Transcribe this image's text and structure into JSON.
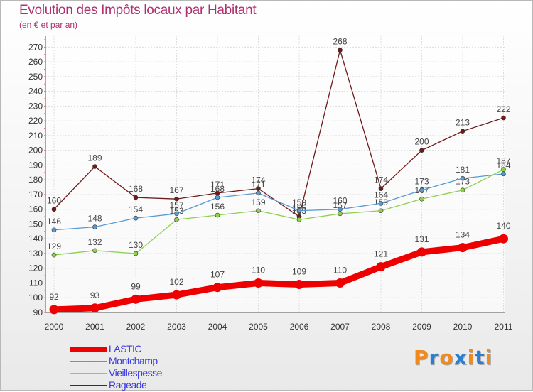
{
  "chart_data": {
    "type": "line",
    "title": "Evolution des Impôts locaux par Habitant",
    "subtitle": "(en € et par an)",
    "xlabel": "",
    "ylabel": "",
    "x": [
      "2000",
      "2001",
      "2002",
      "2003",
      "2004",
      "2005",
      "2006",
      "2007",
      "2008",
      "2009",
      "2010",
      "2011"
    ],
    "ylim": [
      90,
      275
    ],
    "yticks": [
      90,
      100,
      110,
      120,
      130,
      140,
      150,
      160,
      170,
      180,
      190,
      200,
      210,
      220,
      230,
      240,
      250,
      260,
      270
    ],
    "grid": true,
    "legend_position": "bottom-left",
    "series": [
      {
        "name": "LASTIC",
        "color": "#ee0000",
        "values": [
          92,
          93,
          99,
          102,
          107,
          110,
          109,
          110,
          121,
          131,
          134,
          140
        ]
      },
      {
        "name": "Montchamp",
        "color": "#5a9ad0",
        "values": [
          146,
          148,
          154,
          157,
          168,
          171,
          159,
          160,
          164,
          173,
          181,
          184
        ]
      },
      {
        "name": "Vieillespesse",
        "color": "#8fd050",
        "values": [
          129,
          132,
          130,
          153,
          156,
          159,
          153,
          157,
          159,
          167,
          173,
          187
        ]
      },
      {
        "name": "Rageade",
        "color": "#6e1a1a",
        "values": [
          160,
          189,
          168,
          167,
          171,
          174,
          155,
          268,
          174,
          200,
          213,
          222
        ]
      }
    ],
    "labels_montchamp": [
      "146",
      "148",
      "154",
      "157",
      "168",
      "171",
      "159",
      "160",
      "164",
      "173",
      "181",
      "184"
    ],
    "labels_vieillespesse": [
      "129",
      "132",
      "130",
      "153",
      "156",
      "159",
      "153",
      "157",
      "159",
      "167",
      "173",
      "187"
    ],
    "labels_rageade": [
      "160",
      "189",
      "168",
      "167",
      "171",
      "174",
      "155",
      "268",
      "174",
      "200",
      "213",
      "222"
    ],
    "labels_lastic": [
      "92",
      "93",
      "99",
      "102",
      "107",
      "110",
      "109",
      "110",
      "121",
      "131",
      "134",
      "140"
    ]
  },
  "logo": {
    "letters": [
      "P",
      "r",
      "o",
      "x",
      "i",
      "t",
      "i"
    ],
    "colors": [
      "#f08a1c",
      "#2a7fd0",
      "#f08a1c",
      "#2a7fd0",
      "#f08a1c",
      "#2a7fd0",
      "#f08a1c"
    ]
  },
  "legend_label_color": "#3a3ae0"
}
